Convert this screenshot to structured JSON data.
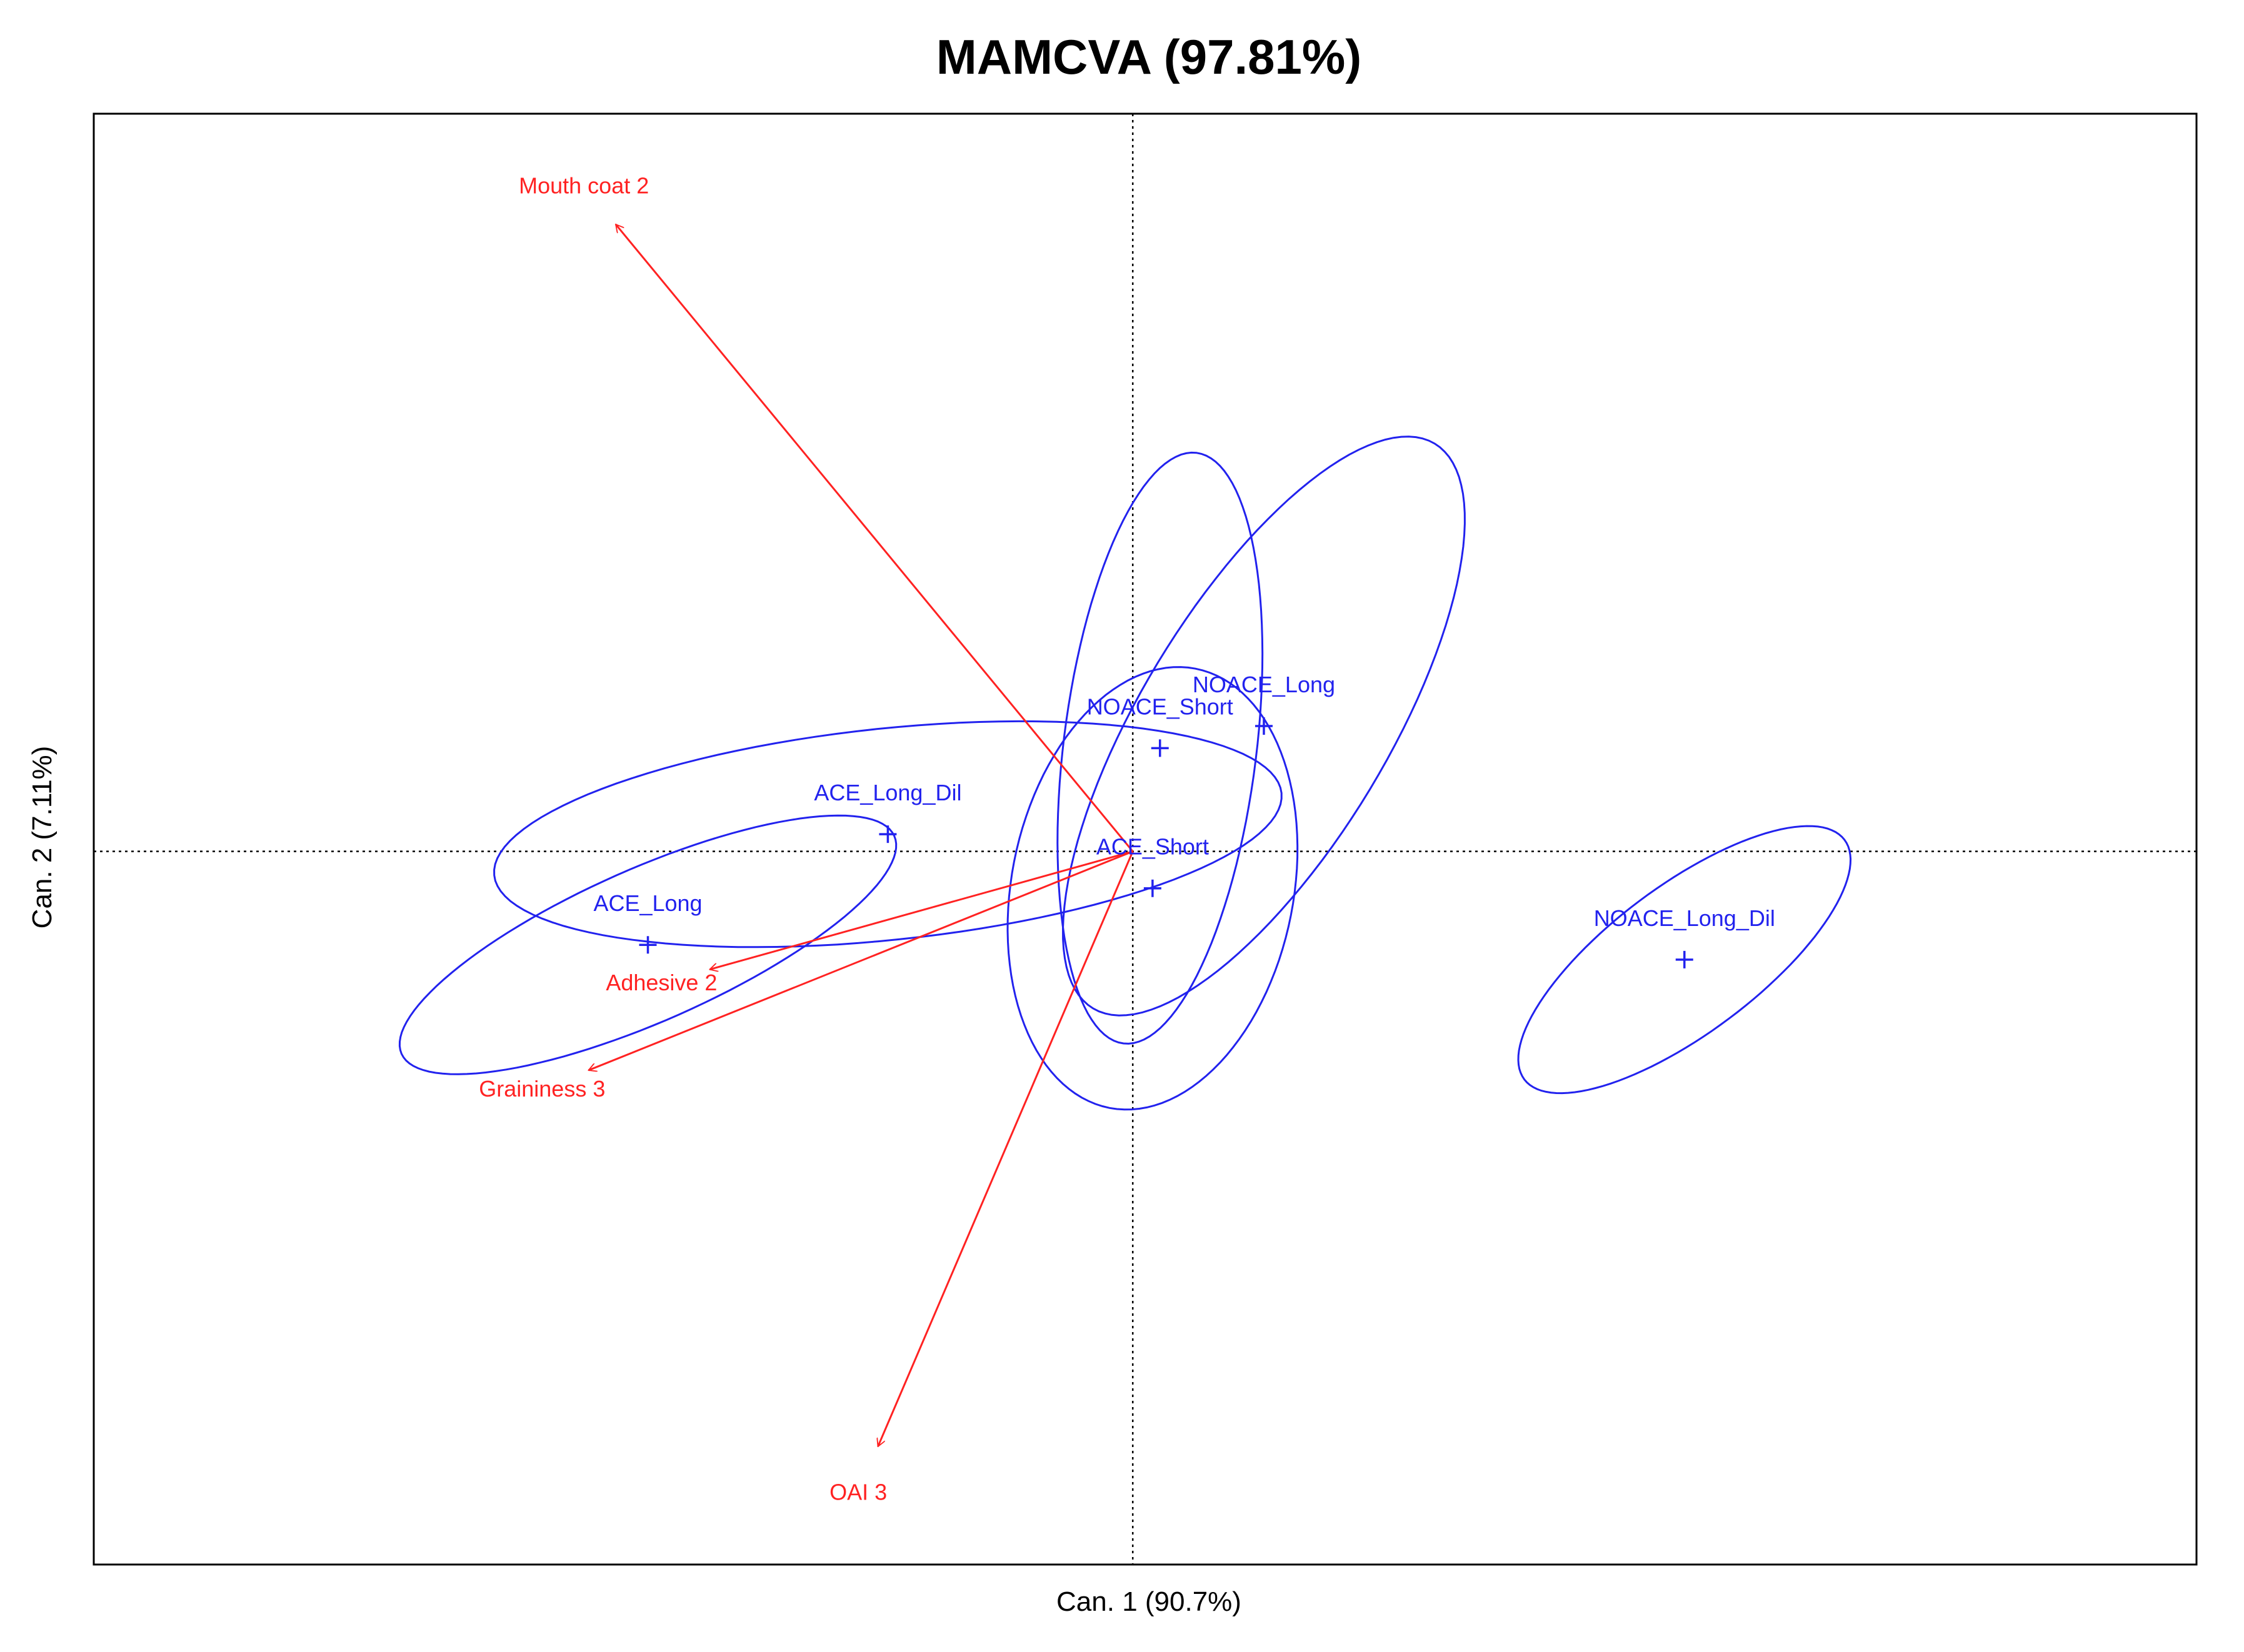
{
  "chart_data": {
    "type": "scatter",
    "title": "MAMCVA (97.81%)",
    "xlabel": "Can. 1 (90.7%)",
    "ylabel": "Can. 2 (7.11%)",
    "xlim": [
      -4.2,
      4.3
    ],
    "ylim": [
      -2.9,
      3.0
    ],
    "grid": false,
    "reference_lines": {
      "x": 0,
      "y": 0,
      "style": "dotted"
    },
    "colors": {
      "groups": "#2222ee",
      "variables": "#ff2222",
      "frame": "#000000"
    },
    "groups": [
      {
        "name": "ACE_Long",
        "x": -1.96,
        "y": -0.38,
        "ellipse": {
          "rx": 1.09,
          "ry": 0.31,
          "angle": 24
        }
      },
      {
        "name": "ACE_Long_Dil",
        "x": -0.99,
        "y": 0.07,
        "ellipse": {
          "rx": 1.6,
          "ry": 0.43,
          "angle": 6
        }
      },
      {
        "name": "ACE_Short",
        "x": 0.08,
        "y": -0.15,
        "ellipse": {
          "rx": 0.91,
          "ry": 0.57,
          "angle": 79
        }
      },
      {
        "name": "NOACE_Short",
        "x": 0.11,
        "y": 0.42,
        "ellipse": {
          "rx": 1.21,
          "ry": 0.39,
          "angle": 83
        }
      },
      {
        "name": "NOACE_Long",
        "x": 0.53,
        "y": 0.51,
        "ellipse": {
          "rx": 1.34,
          "ry": 0.5,
          "angle": 59
        }
      },
      {
        "name": "NOACE_Long_Dil",
        "x": 2.23,
        "y": -0.44,
        "ellipse": {
          "rx": 0.81,
          "ry": 0.3,
          "angle": 37
        }
      }
    ],
    "variables": [
      {
        "name": "Mouth coat 2",
        "x": -2.09,
        "y": 2.55
      },
      {
        "name": "Adhesive 2",
        "x": -1.71,
        "y": -0.48
      },
      {
        "name": "Graininess 3",
        "x": -2.2,
        "y": -0.89
      },
      {
        "name": "OAI 3",
        "x": -1.03,
        "y": -2.42
      }
    ]
  }
}
